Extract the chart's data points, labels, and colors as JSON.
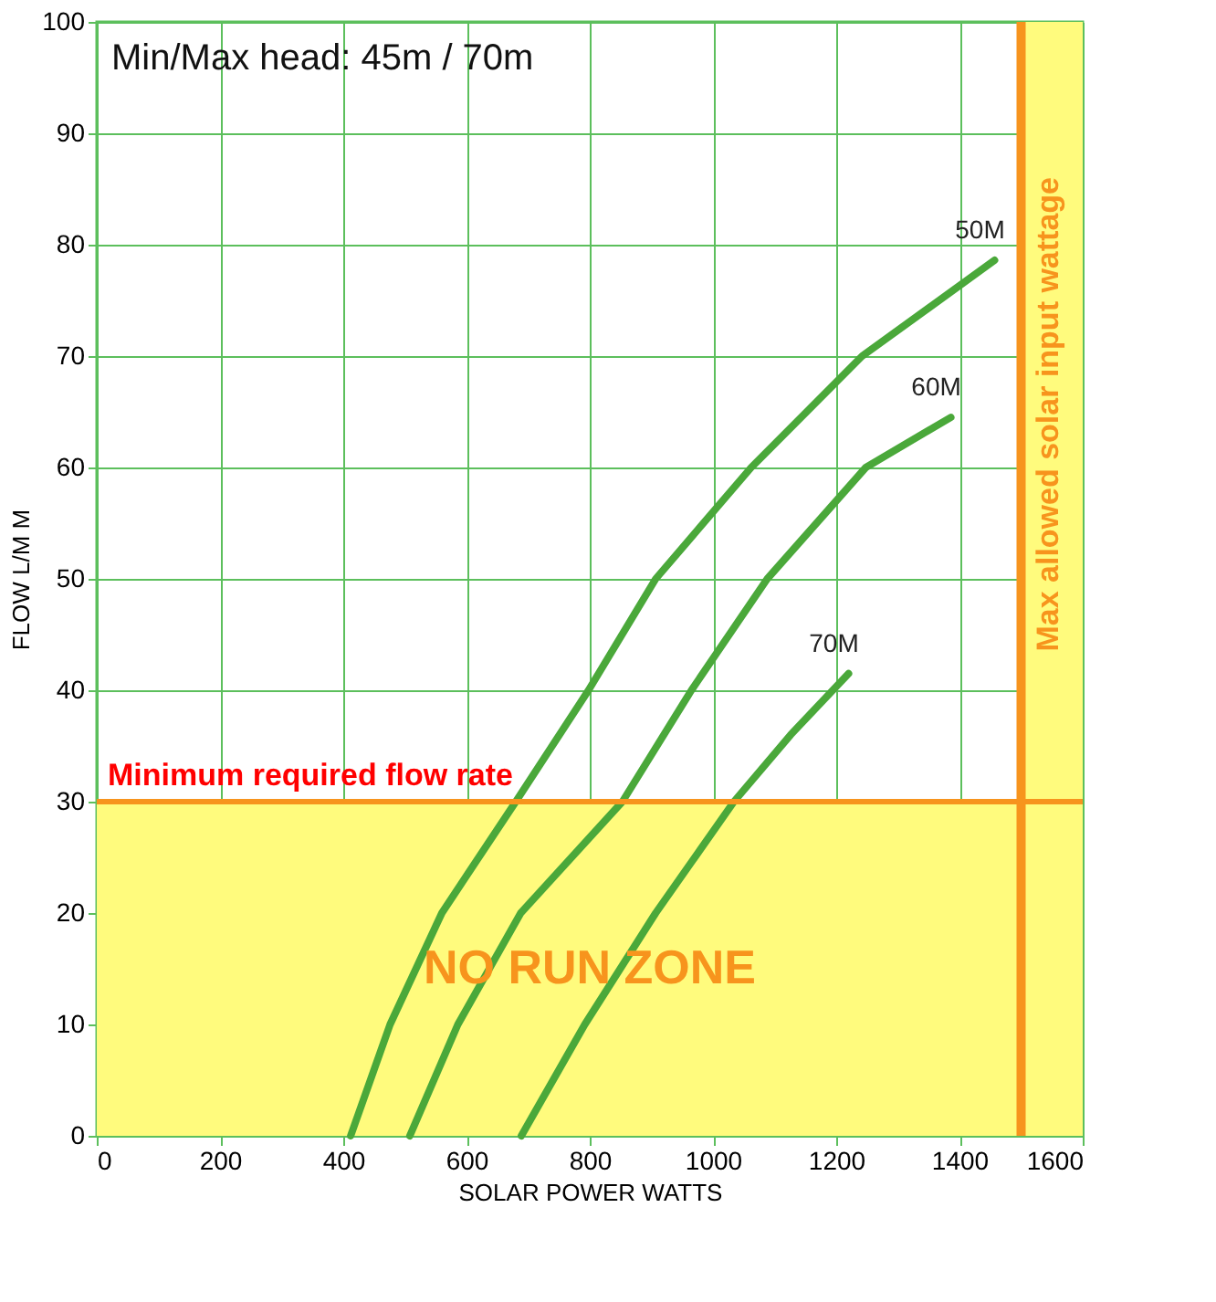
{
  "chart_data": {
    "type": "line",
    "xlabel": "SOLAR POWER WATTS",
    "ylabel": "FLOW L/M M",
    "annotations": [
      "Min/Max head: 45m / 70m"
    ],
    "series": [
      {
        "name": "50M",
        "color": "#4aa83a",
        "x": [
          412,
          476,
          560,
          680,
          798,
          907,
          1062,
          1242,
          1457
        ],
        "values": [
          0,
          10,
          20,
          30,
          40,
          50,
          60,
          70,
          78.6
        ]
      },
      {
        "name": "60M",
        "color": "#4aa83a",
        "x": [
          508,
          586,
          688,
          853,
          965,
          1088,
          1248,
          1386
        ],
        "values": [
          0,
          10,
          20,
          30,
          40,
          50,
          60,
          64.5
        ]
      },
      {
        "name": "70M",
        "color": "#4aa83a",
        "x": [
          689,
          792,
          907,
          1034,
          1126,
          1220
        ],
        "values": [
          0,
          10,
          20,
          30,
          36,
          41.5
        ]
      }
    ],
    "xlim": [
      0,
      1600
    ],
    "xticks": [
      0,
      200,
      400,
      600,
      800,
      1000,
      1200,
      1400,
      1600
    ],
    "ylim": [
      0,
      100
    ],
    "yticks": [
      0,
      10,
      20,
      30,
      40,
      50,
      60,
      70,
      80,
      90,
      100
    ],
    "ref_lines": [
      {
        "axis": "y",
        "value": 30,
        "label": "Minimum required flow rate",
        "color": "#f7941d"
      },
      {
        "axis": "x",
        "value": 1500,
        "label": "Max allowed solar input wattage",
        "color": "#f7941d"
      }
    ],
    "bands": [
      {
        "axis": "y",
        "from": 0,
        "to": 30,
        "label": "NO RUN ZONE",
        "color": "#fffb7d"
      },
      {
        "axis": "x",
        "from": 1500,
        "to": 1600,
        "color": "#fffb7d"
      }
    ],
    "grid": true
  }
}
